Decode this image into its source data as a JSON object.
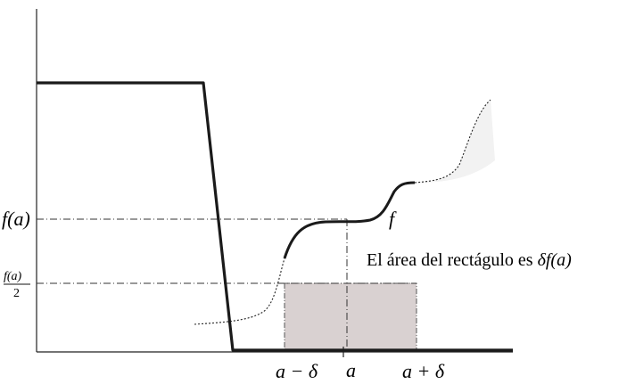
{
  "labels": {
    "f_of_a": "f(a)",
    "half_num": "f(a)",
    "half_den": "2",
    "f": "f",
    "a_minus_delta": "a − δ",
    "a": "a",
    "a_plus_delta": "a + δ",
    "caption_text": "El área del rectágulo es ",
    "caption_math": "δf(a)"
  },
  "colors": {
    "curve": "#1a1a1a",
    "rect_fill": "#d9d1d1",
    "rect_stroke": "#555555",
    "shade": "#ececec",
    "axis": "#222222"
  }
}
